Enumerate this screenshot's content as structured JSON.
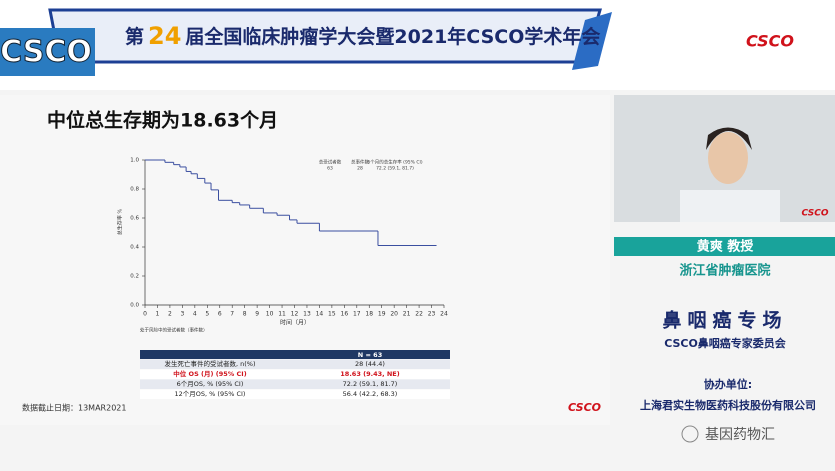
{
  "header": {
    "title_prefix": "第",
    "title_number": "24",
    "title_suffix": "届全国临床肿瘤学大会暨2021年CSCO学术年会",
    "logo_left": "CSCO",
    "logo_right": "CSCO"
  },
  "slide": {
    "title": "中位总生存期为18.63个月",
    "footnote": "数据截止日期：13MAR2021",
    "logo": "CSCO",
    "legend_table": {
      "headers": [
        "总受试者数",
        "总事件数",
        "6个月的总生存率 (95% CI)"
      ],
      "values": [
        "63",
        "28",
        "72.2 (59.1, 81.7)"
      ]
    },
    "risk_label": "处于风险中的受试者数（事件数）",
    "table": {
      "header": "N = 63",
      "rows": [
        [
          "发生死亡事件的受试者数, n(%)",
          "28 (44.4)"
        ],
        [
          "中位 OS (月) (95% CI)",
          "18.63 (9.43, NE)"
        ],
        [
          "6个月OS, % (95% CI)",
          "72.2 (59.1, 81.7)"
        ],
        [
          "12个月OS, % (95% CI)",
          "56.4 (42.2, 68.3)"
        ]
      ]
    }
  },
  "chart_data": {
    "type": "step",
    "x_label": "时间（月）",
    "y_label": "总生存率 %",
    "x": [
      0,
      1.6,
      2.3,
      2.8,
      3.3,
      3.7,
      4.2,
      4.8,
      5.3,
      5.9,
      7.0,
      7.6,
      8.4,
      9.5,
      10.6,
      11.6,
      12.2,
      14.0,
      18.7,
      23.4
    ],
    "series": [
      {
        "color": "#3b4fa0",
        "values": [
          1.0,
          0.984,
          0.968,
          0.952,
          0.921,
          0.905,
          0.873,
          0.841,
          0.794,
          0.722,
          0.706,
          0.69,
          0.667,
          0.635,
          0.619,
          0.587,
          0.564,
          0.51,
          0.41,
          0.41
        ]
      }
    ],
    "xlim": [
      0,
      24
    ],
    "ylim": [
      0,
      1
    ],
    "xticks": [
      0,
      1,
      2,
      3,
      4,
      5,
      6,
      7,
      8,
      9,
      10,
      11,
      12,
      13,
      14,
      15,
      16,
      17,
      18,
      19,
      20,
      21,
      22,
      23,
      24
    ],
    "yticks": [
      {
        "value": 0,
        "label": "0.0"
      },
      0.2,
      0.4,
      0.6,
      0.8,
      {
        "value": 1,
        "label": "1.0"
      }
    ]
  },
  "speaker": {
    "name": "黄爽 教授",
    "hospital": "浙江省肿瘤医院",
    "session": "鼻咽癌专场",
    "committee": "CSCO鼻咽癌专家委员会",
    "co_label": "协办单位:",
    "co_org": "上海君实生物医药科技股份有限公司"
  },
  "watermark": "基因药物汇"
}
